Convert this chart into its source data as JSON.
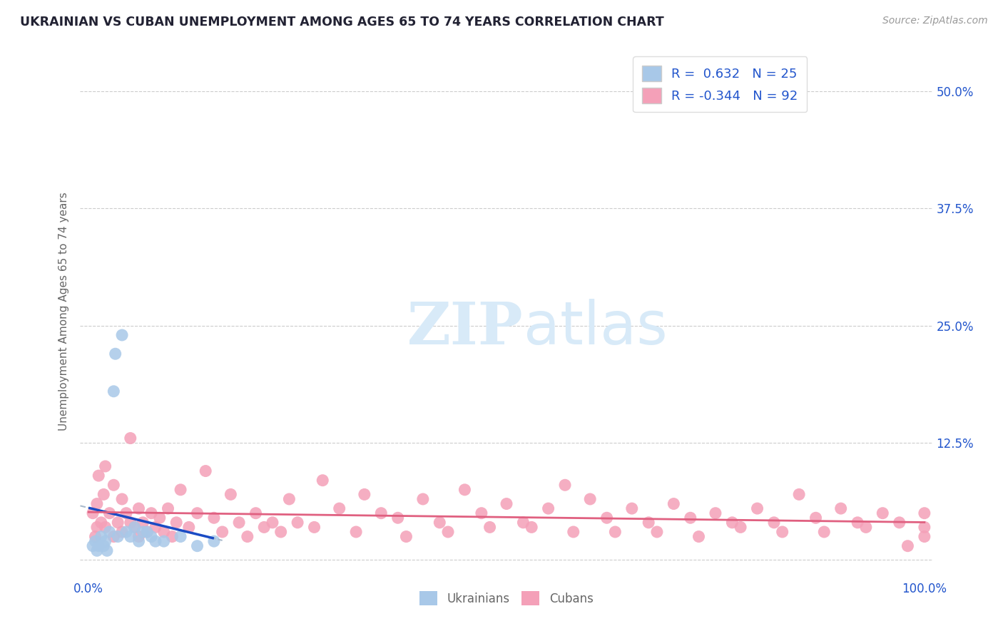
{
  "title": "UKRAINIAN VS CUBAN UNEMPLOYMENT AMONG AGES 65 TO 74 YEARS CORRELATION CHART",
  "source": "Source: ZipAtlas.com",
  "ylabel": "Unemployment Among Ages 65 to 74 years",
  "xlim": [
    -1,
    101
  ],
  "ylim": [
    -2,
    55
  ],
  "ytick_positions": [
    0,
    12.5,
    25.0,
    37.5,
    50.0
  ],
  "ytick_labels_right": [
    "",
    "12.5%",
    "25.0%",
    "37.5%",
    "50.0%"
  ],
  "xtick_positions": [
    0,
    25,
    50,
    75,
    100
  ],
  "xticklabels": [
    "0.0%",
    "",
    "",
    "",
    "100.0%"
  ],
  "grid_color": "#cccccc",
  "background_color": "#ffffff",
  "ukrainian_color": "#a8c8e8",
  "cuban_color": "#f4a0b8",
  "ukrainian_line_color": "#1a4bc4",
  "cuban_line_color": "#e06080",
  "dashed_line_color": "#aabbcc",
  "r_ukrainian": 0.632,
  "n_ukrainian": 25,
  "r_cuban": -0.344,
  "n_cuban": 92,
  "legend_label_ukrainian": "Ukrainians",
  "legend_label_cuban": "Cubans",
  "title_color": "#222233",
  "axis_label_color": "#666666",
  "legend_text_color": "#2255cc",
  "tick_color": "#2255cc",
  "ukr_x": [
    0.5,
    0.8,
    1.0,
    1.2,
    1.5,
    1.8,
    2.0,
    2.2,
    2.5,
    3.0,
    3.2,
    3.5,
    4.0,
    4.5,
    5.0,
    5.5,
    6.0,
    6.5,
    7.0,
    7.5,
    8.0,
    9.0,
    11.0,
    13.0,
    15.0
  ],
  "ukr_y": [
    1.5,
    2.0,
    1.0,
    1.5,
    2.5,
    1.5,
    2.0,
    1.0,
    3.0,
    18.0,
    22.0,
    2.5,
    24.0,
    3.0,
    2.5,
    3.5,
    2.0,
    3.0,
    3.0,
    2.5,
    2.0,
    2.0,
    2.5,
    1.5,
    2.0
  ],
  "cub_x": [
    0.5,
    0.8,
    1.0,
    1.0,
    1.2,
    1.5,
    1.8,
    2.0,
    2.0,
    2.5,
    3.0,
    3.0,
    3.5,
    4.0,
    4.0,
    4.5,
    5.0,
    5.0,
    5.5,
    6.0,
    6.0,
    6.5,
    7.0,
    7.5,
    8.0,
    8.5,
    9.0,
    9.5,
    10.0,
    10.5,
    11.0,
    12.0,
    13.0,
    14.0,
    15.0,
    16.0,
    17.0,
    18.0,
    19.0,
    20.0,
    21.0,
    22.0,
    23.0,
    24.0,
    25.0,
    27.0,
    28.0,
    30.0,
    32.0,
    33.0,
    35.0,
    37.0,
    38.0,
    40.0,
    42.0,
    43.0,
    45.0,
    47.0,
    48.0,
    50.0,
    52.0,
    53.0,
    55.0,
    57.0,
    58.0,
    60.0,
    62.0,
    63.0,
    65.0,
    67.0,
    68.0,
    70.0,
    72.0,
    73.0,
    75.0,
    77.0,
    78.0,
    80.0,
    82.0,
    83.0,
    85.0,
    87.0,
    88.0,
    90.0,
    92.0,
    93.0,
    95.0,
    97.0,
    98.0,
    100.0,
    100.0,
    100.0
  ],
  "cub_y": [
    5.0,
    2.5,
    6.0,
    3.5,
    9.0,
    4.0,
    7.0,
    3.5,
    10.0,
    5.0,
    2.5,
    8.0,
    4.0,
    6.5,
    3.0,
    5.0,
    13.0,
    4.0,
    3.5,
    5.5,
    2.5,
    4.0,
    3.0,
    5.0,
    3.5,
    4.5,
    3.0,
    5.5,
    2.5,
    4.0,
    7.5,
    3.5,
    5.0,
    9.5,
    4.5,
    3.0,
    7.0,
    4.0,
    2.5,
    5.0,
    3.5,
    4.0,
    3.0,
    6.5,
    4.0,
    3.5,
    8.5,
    5.5,
    3.0,
    7.0,
    5.0,
    4.5,
    2.5,
    6.5,
    4.0,
    3.0,
    7.5,
    5.0,
    3.5,
    6.0,
    4.0,
    3.5,
    5.5,
    8.0,
    3.0,
    6.5,
    4.5,
    3.0,
    5.5,
    4.0,
    3.0,
    6.0,
    4.5,
    2.5,
    5.0,
    4.0,
    3.5,
    5.5,
    4.0,
    3.0,
    7.0,
    4.5,
    3.0,
    5.5,
    4.0,
    3.5,
    5.0,
    4.0,
    1.5,
    3.5,
    5.0,
    2.5
  ]
}
